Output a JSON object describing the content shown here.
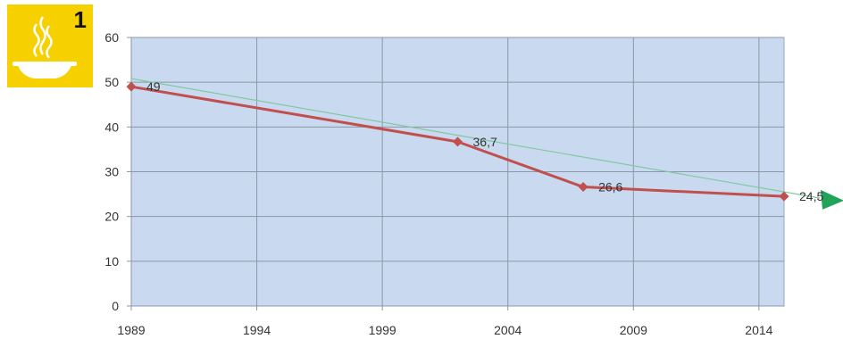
{
  "badge": {
    "number": "1",
    "icon": "soup-bowl-icon",
    "color": "#f7d000"
  },
  "chart_data": {
    "type": "line",
    "title": "",
    "xlabel": "",
    "ylabel": "",
    "xlim": [
      1989,
      2015
    ],
    "ylim": [
      0,
      60
    ],
    "x_ticks": [
      1989,
      1994,
      1999,
      2004,
      2009,
      2014
    ],
    "y_ticks": [
      0,
      10,
      20,
      30,
      40,
      50,
      60
    ],
    "grid": true,
    "plot_background": "#c9daf0",
    "series": [
      {
        "color": "#c0504d",
        "marker": "diamond",
        "points": [
          {
            "x": 1989,
            "y": 49,
            "label": "49"
          },
          {
            "x": 2002,
            "y": 36.7,
            "label": "36,7"
          },
          {
            "x": 2007,
            "y": 26.6,
            "label": "26,6"
          },
          {
            "x": 2015,
            "y": 24.5,
            "label": "24,5"
          }
        ]
      }
    ],
    "trendline": {
      "color": "#7fc9a0",
      "arrow_color": "#21a35a",
      "points": [
        {
          "x": 1989,
          "y": 50.8
        },
        {
          "x": 2015,
          "y": 25.5
        }
      ]
    }
  }
}
